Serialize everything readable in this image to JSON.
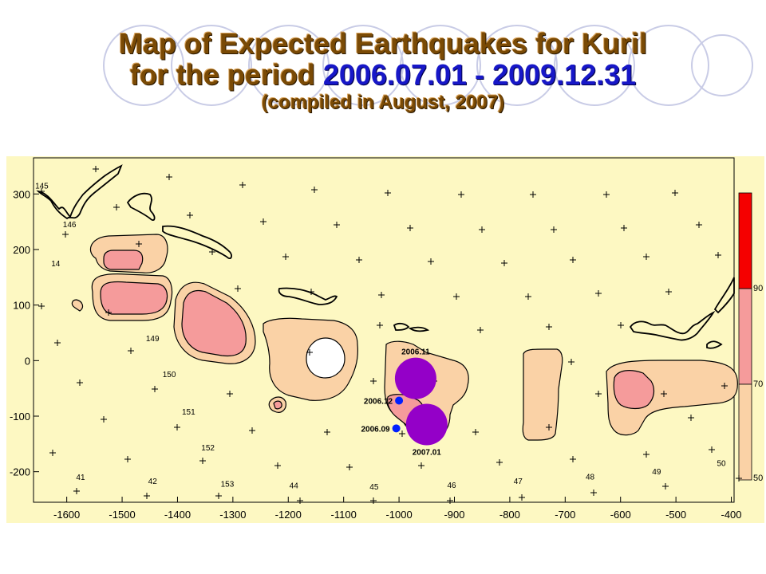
{
  "title": {
    "line1": "Map  of  Expected  Earthquakes  for  Kuril",
    "line2_prefix": "for the period ",
    "line2_period": "2006.07.01 - 2009.12.31",
    "line3": "(compiled  in August, 2007)"
  },
  "colors": {
    "title_text": "#7a4a05",
    "period_text": "#1717c8",
    "background": "#fdf8c2",
    "zone_low": "#fad2a6",
    "zone_mid": "#f59b9b",
    "zone_high": "#f50000",
    "event_large": "#9400c8",
    "event_small": "#0020ff"
  },
  "chart_data": {
    "type": "map",
    "x_ticks": [
      "-1600",
      "-1500",
      "-1400",
      "-1300",
      "-1200",
      "-1100",
      "-1000",
      "-900",
      "-800",
      "-700",
      "-600",
      "-500",
      "-400"
    ],
    "y_ticks": [
      "300",
      "200",
      "100",
      "0",
      "-100",
      "-200"
    ],
    "xlim": [
      -1660,
      -395
    ],
    "ylim": [
      -255,
      365
    ],
    "colorbar": {
      "labels": [
        "90",
        "70",
        "50"
      ],
      "levels": [
        {
          "from": 90,
          "to": 100,
          "color": "#f50000"
        },
        {
          "from": 70,
          "to": 90,
          "color": "#f59b9b"
        },
        {
          "from": 50,
          "to": 70,
          "color": "#fad2a6"
        }
      ]
    },
    "segment_labels": [
      {
        "text": "145",
        "x": -1645,
        "y": 310
      },
      {
        "text": "146",
        "x": -1595,
        "y": 240
      },
      {
        "text": "14",
        "x": -1620,
        "y": 170
      },
      {
        "text": "149",
        "x": -1445,
        "y": 35
      },
      {
        "text": "150",
        "x": -1415,
        "y": -30
      },
      {
        "text": "151",
        "x": -1380,
        "y": -97
      },
      {
        "text": "152",
        "x": -1345,
        "y": -162
      },
      {
        "text": "41",
        "x": -1575,
        "y": -215
      },
      {
        "text": "42",
        "x": -1445,
        "y": -222
      },
      {
        "text": "153",
        "x": -1310,
        "y": -227
      },
      {
        "text": "44",
        "x": -1190,
        "y": -230
      },
      {
        "text": "45",
        "x": -1045,
        "y": -232
      },
      {
        "text": "46",
        "x": -905,
        "y": -229
      },
      {
        "text": "47",
        "x": -785,
        "y": -222
      },
      {
        "text": "48",
        "x": -655,
        "y": -214
      },
      {
        "text": "49",
        "x": -535,
        "y": -205
      },
      {
        "text": "50",
        "x": -418,
        "y": -190
      }
    ],
    "events": [
      {
        "label": "2006.11",
        "x": -970,
        "y": -32,
        "size": "large"
      },
      {
        "label": "2006.12",
        "x": -1000,
        "y": -72,
        "size": "small"
      },
      {
        "label": "2006.09",
        "x": -1005,
        "y": -122,
        "size": "small"
      },
      {
        "label": "2007.01",
        "x": -950,
        "y": -115,
        "size": "large"
      }
    ]
  }
}
